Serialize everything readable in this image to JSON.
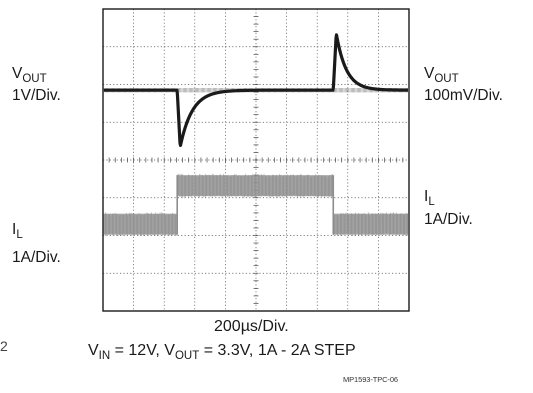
{
  "chart_data": {
    "type": "line",
    "title": "",
    "x_axis": {
      "divisions": 10,
      "per_division": "200µs/Div."
    },
    "y_axis": {
      "divisions": 8
    },
    "grid": true,
    "channels": [
      {
        "name_main": "V",
        "name_sub": "OUT",
        "left_scale": "1V/Div.",
        "right_scale": "100mV/Div.",
        "color": "#1a1a1a",
        "baseline_div": 2.15,
        "events": [
          {
            "t_div": 4.85,
            "type": "load-step-up",
            "excursion_mV": -150
          },
          {
            "t_div": 15.05,
            "type": "load-step-down",
            "excursion_mV": 150
          }
        ]
      },
      {
        "name_main": "I",
        "name_sub": "L",
        "left_scale": "1A/Div.",
        "right_scale": "1A/Div.",
        "color": "#8a8a8a",
        "low_level_A": 1,
        "high_level_A": 2,
        "step_up_div": 4.85,
        "step_down_div": 15.05
      }
    ],
    "caption_line1": "200µs/Div.",
    "caption_line2": {
      "vin_main": "V",
      "vin_sub": "IN",
      "vin_value": " = 12V, ",
      "vout_main": "V",
      "vout_sub": "OUT",
      "vout_value": " = 3.3V, 1A - 2A STEP"
    },
    "figure_code": "MP1593-TPC-06"
  },
  "page_edge_mark": "2"
}
